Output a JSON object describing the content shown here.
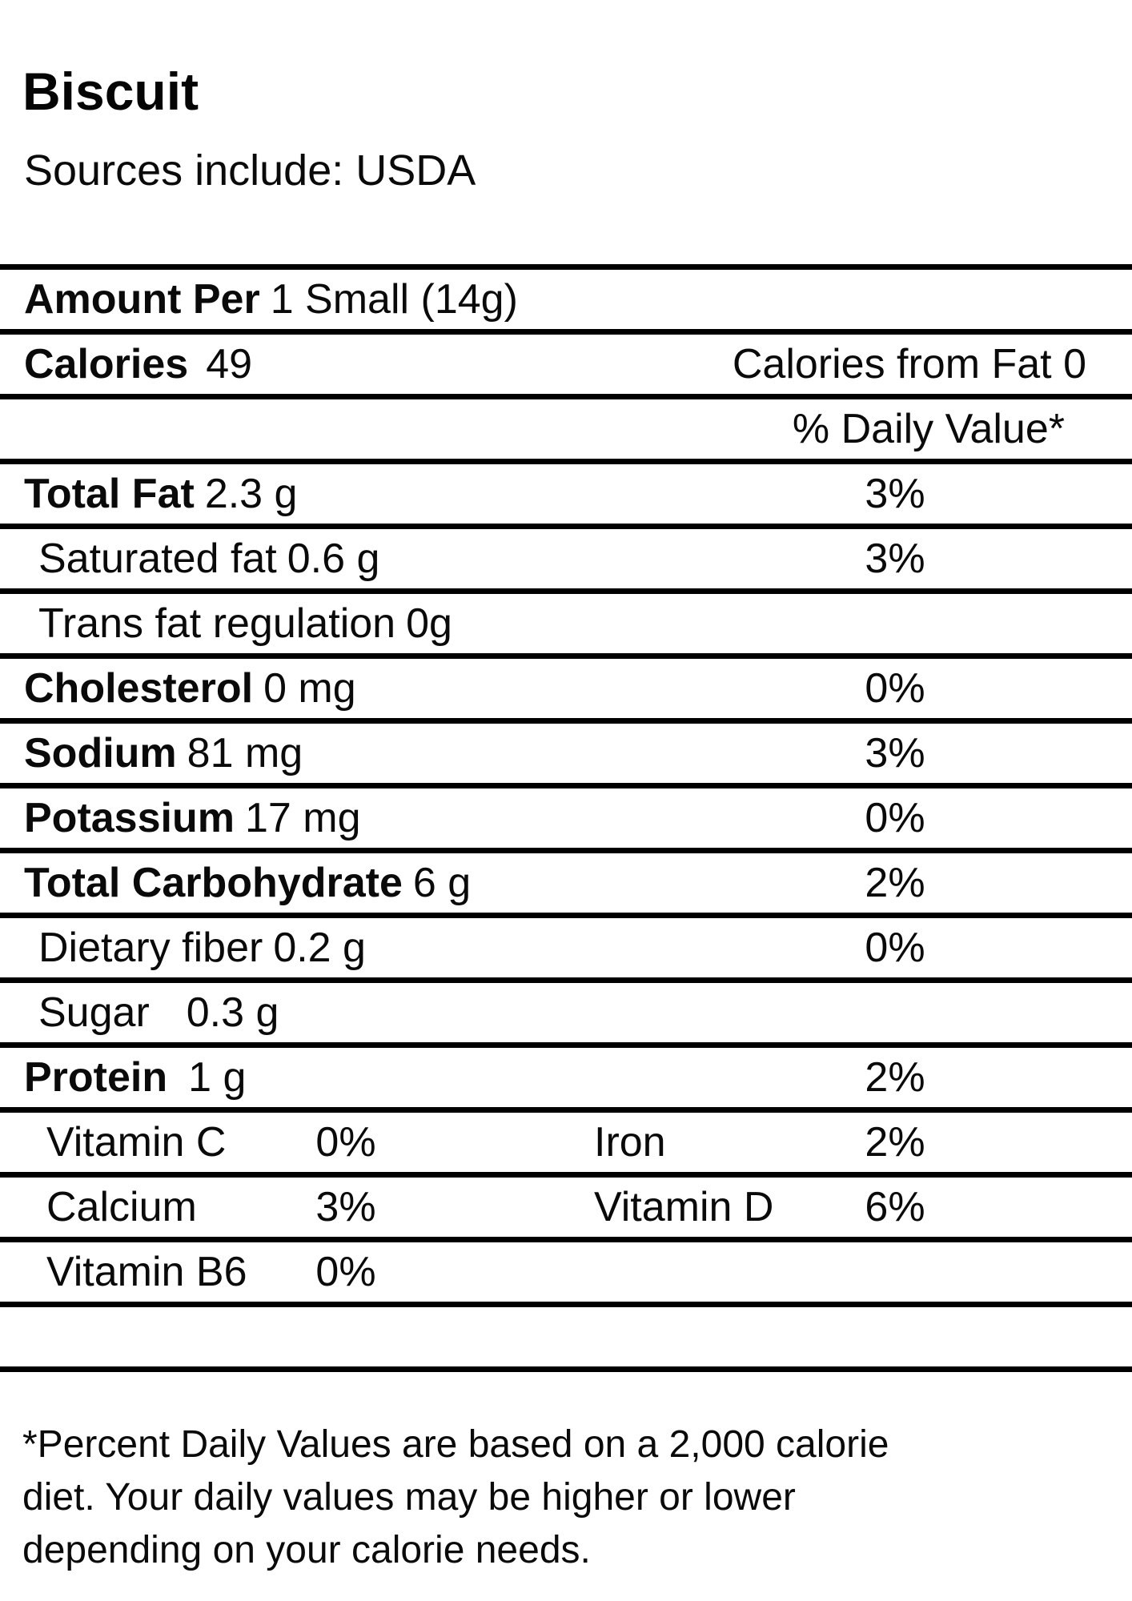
{
  "header": {
    "title": "Biscuit",
    "sources": "Sources include: USDA"
  },
  "table": {
    "amount_per_label": "Amount Per",
    "serving": "1 Small (14g)",
    "calories_label": "Calories",
    "calories_value": "49",
    "calories_from_fat": "Calories from Fat 0",
    "daily_value_header": "% Daily Value*",
    "rows": [
      {
        "name": "Total Fat",
        "amount": "2.3 g",
        "dv": "3%",
        "bold": true,
        "indent": false
      },
      {
        "name": "Saturated fat",
        "amount": "0.6 g",
        "dv": "3%",
        "bold": false,
        "indent": true
      },
      {
        "name": "Trans fat regulation",
        "amount": "0g",
        "dv": "",
        "bold": false,
        "indent": true
      },
      {
        "name": "Cholesterol",
        "amount": "0 mg",
        "dv": "0%",
        "bold": true,
        "indent": false
      },
      {
        "name": "Sodium",
        "amount": "81 mg",
        "dv": "3%",
        "bold": true,
        "indent": false
      },
      {
        "name": "Potassium",
        "amount": "17 mg",
        "dv": "0%",
        "bold": true,
        "indent": false
      },
      {
        "name": "Total Carbohydrate",
        "amount": "6 g",
        "dv": "2%",
        "bold": true,
        "indent": false
      },
      {
        "name": "Dietary fiber",
        "amount": "0.2 g",
        "dv": "0%",
        "bold": false,
        "indent": true
      },
      {
        "name": "Sugar",
        "amount": "0.3 g",
        "dv": "",
        "bold": false,
        "indent": true,
        "gap": "wide"
      },
      {
        "name": "Protein",
        "amount": "1 g",
        "dv": "2%",
        "bold": true,
        "indent": false,
        "gap": "medium"
      }
    ],
    "micronutrients": [
      {
        "label1": "Vitamin C",
        "value1": "0%",
        "label2": "Iron",
        "value2": "2%"
      },
      {
        "label1": "Calcium",
        "value1": "3%",
        "label2": "Vitamin D",
        "value2": "6%"
      },
      {
        "label1": "Vitamin B6",
        "value1": "0%",
        "label2": "",
        "value2": ""
      }
    ]
  },
  "footnote": "*Percent Daily Values are based on a 2,000 calorie\ndiet. Your daily values may be higher or lower\ndepending on your calorie needs."
}
